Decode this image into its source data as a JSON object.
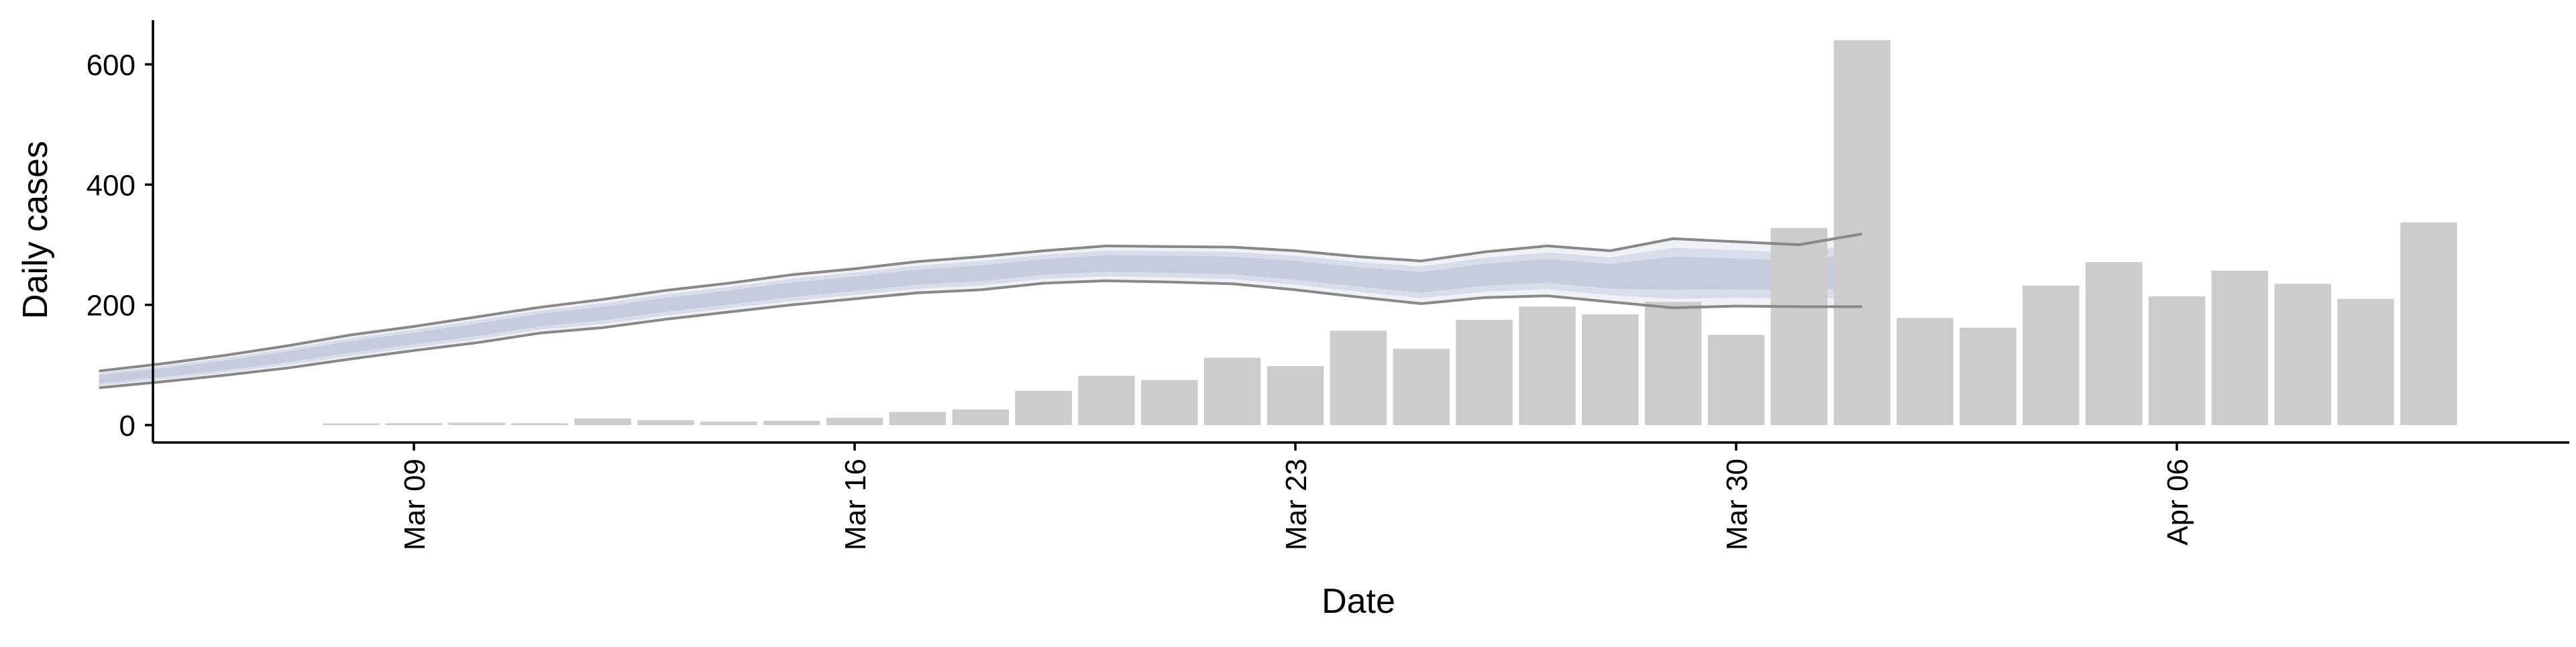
{
  "chart_data": {
    "type": "bar",
    "xlabel": "Date",
    "ylabel": "Daily cases",
    "ylim": [
      -30,
      670
    ],
    "grid": false,
    "x_ticks": [
      {
        "date": "2020-03-09",
        "label": "Mar 09"
      },
      {
        "date": "2020-03-16",
        "label": "Mar 16"
      },
      {
        "date": "2020-03-23",
        "label": "Mar 23"
      },
      {
        "date": "2020-03-30",
        "label": "Mar 30"
      },
      {
        "date": "2020-04-06",
        "label": "Apr 06"
      }
    ],
    "y_ticks": [
      0,
      200,
      400,
      600
    ],
    "bars": {
      "name": "Daily cases",
      "color": "#cccccc",
      "dates": [
        "2020-03-08",
        "2020-03-09",
        "2020-03-10",
        "2020-03-11",
        "2020-03-12",
        "2020-03-13",
        "2020-03-14",
        "2020-03-15",
        "2020-03-16",
        "2020-03-17",
        "2020-03-18",
        "2020-03-19",
        "2020-03-20",
        "2020-03-21",
        "2020-03-22",
        "2020-03-23",
        "2020-03-24",
        "2020-03-25",
        "2020-03-26",
        "2020-03-27",
        "2020-03-28",
        "2020-03-29",
        "2020-03-30",
        "2020-03-31",
        "2020-04-01",
        "2020-04-02",
        "2020-04-03",
        "2020-04-04",
        "2020-04-05",
        "2020-04-06",
        "2020-04-07",
        "2020-04-08",
        "2020-04-09",
        "2020-04-10",
        "2020-04-11"
      ],
      "values": [
        2,
        3,
        4,
        3,
        11,
        8,
        6,
        7,
        12,
        22,
        26,
        57,
        82,
        75,
        112,
        98,
        157,
        127,
        175,
        197,
        184,
        205,
        150,
        328,
        640,
        178,
        162,
        232,
        271,
        214,
        257,
        235,
        210,
        337,
        0
      ]
    },
    "nowcast": {
      "line_color": "#888888",
      "band_colors": [
        "#eceef5",
        "#d5d9e6",
        "#c2c8dc"
      ],
      "dates": [
        "2020-03-04",
        "2020-03-05",
        "2020-03-06",
        "2020-03-07",
        "2020-03-08",
        "2020-03-09",
        "2020-03-10",
        "2020-03-11",
        "2020-03-12",
        "2020-03-13",
        "2020-03-14",
        "2020-03-15",
        "2020-03-16",
        "2020-03-17",
        "2020-03-18",
        "2020-03-19",
        "2020-03-20",
        "2020-03-21",
        "2020-03-22",
        "2020-03-23",
        "2020-03-24",
        "2020-03-25",
        "2020-03-26",
        "2020-03-27",
        "2020-03-28",
        "2020-03-29",
        "2020-03-30",
        "2020-03-31",
        "2020-04-01"
      ],
      "upper": [
        90,
        102,
        116,
        132,
        150,
        164,
        180,
        196,
        209,
        224,
        236,
        250,
        260,
        272,
        280,
        290,
        298,
        297,
        296,
        290,
        280,
        273,
        288,
        298,
        290,
        310,
        305,
        300,
        318
      ],
      "lower": [
        62,
        72,
        83,
        95,
        110,
        124,
        137,
        153,
        162,
        176,
        188,
        200,
        210,
        220,
        225,
        236,
        240,
        238,
        235,
        225,
        213,
        202,
        212,
        215,
        205,
        195,
        198,
        197,
        197
      ]
    }
  }
}
